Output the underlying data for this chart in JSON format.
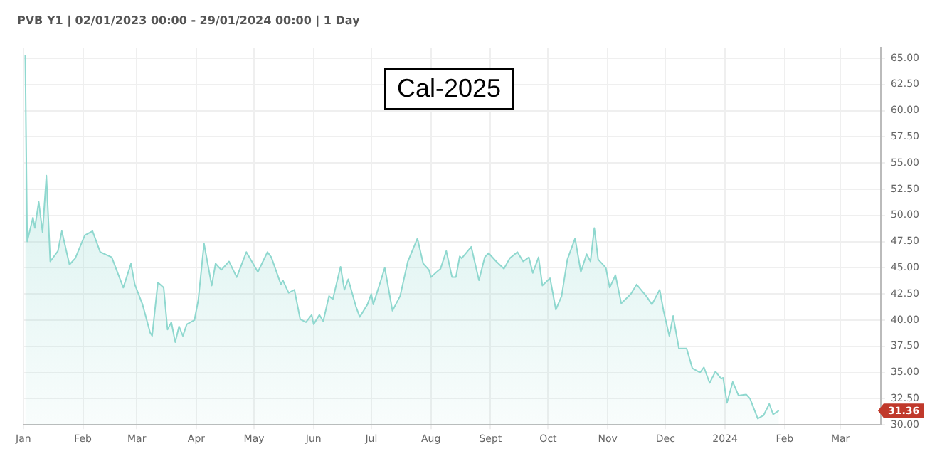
{
  "chart_data": {
    "type": "area",
    "title": "PVB Y1 | 02/01/2023 00:00 - 29/01/2024 00:00 | 1 Day",
    "x": [
      "2023-01-02",
      "2023-01-03",
      "2023-01-06",
      "2023-01-07",
      "2023-01-09",
      "2023-01-11",
      "2023-01-13",
      "2023-01-15",
      "2023-01-19",
      "2023-01-21",
      "2023-01-25",
      "2023-01-28",
      "2023-02-02",
      "2023-02-06",
      "2023-02-10",
      "2023-02-16",
      "2023-02-22",
      "2023-02-26",
      "2023-02-28",
      "2023-03-04",
      "2023-03-08",
      "2023-03-09",
      "2023-03-12",
      "2023-03-15",
      "2023-03-17",
      "2023-03-19",
      "2023-03-21",
      "2023-03-23",
      "2023-03-25",
      "2023-03-27",
      "2023-03-31",
      "2023-04-02",
      "2023-04-05",
      "2023-04-09",
      "2023-04-11",
      "2023-04-14",
      "2023-04-18",
      "2023-04-22",
      "2023-04-27",
      "2023-05-03",
      "2023-05-08",
      "2023-05-10",
      "2023-05-15",
      "2023-05-16",
      "2023-05-19",
      "2023-05-22",
      "2023-05-25",
      "2023-05-28",
      "2023-05-31",
      "2023-06-01",
      "2023-06-04",
      "2023-06-06",
      "2023-06-09",
      "2023-06-11",
      "2023-06-15",
      "2023-06-17",
      "2023-06-19",
      "2023-06-23",
      "2023-06-25",
      "2023-06-29",
      "2023-07-01",
      "2023-07-02",
      "2023-07-06",
      "2023-07-08",
      "2023-07-12",
      "2023-07-16",
      "2023-07-20",
      "2023-07-25",
      "2023-07-28",
      "2023-07-31",
      "2023-08-01",
      "2023-08-04",
      "2023-08-06",
      "2023-08-09",
      "2023-08-12",
      "2023-08-14",
      "2023-08-16",
      "2023-08-17",
      "2023-08-22",
      "2023-08-26",
      "2023-08-29",
      "2023-08-31",
      "2023-09-04",
      "2023-09-08",
      "2023-09-11",
      "2023-09-15",
      "2023-09-18",
      "2023-09-21",
      "2023-09-23",
      "2023-09-26",
      "2023-09-28",
      "2023-10-02",
      "2023-10-05",
      "2023-10-08",
      "2023-10-11",
      "2023-10-15",
      "2023-10-18",
      "2023-10-21",
      "2023-10-23",
      "2023-10-25",
      "2023-10-27",
      "2023-10-31",
      "2023-11-02",
      "2023-11-05",
      "2023-11-08",
      "2023-11-13",
      "2023-11-16",
      "2023-11-21",
      "2023-11-24",
      "2023-11-28",
      "2023-11-30",
      "2023-12-03",
      "2023-12-05",
      "2023-12-08",
      "2023-12-12",
      "2023-12-15",
      "2023-12-19",
      "2023-12-21",
      "2023-12-24",
      "2023-12-27",
      "2023-12-30",
      "2023-12-31",
      "2024-01-02",
      "2024-01-05",
      "2024-01-08",
      "2024-01-12",
      "2024-01-14",
      "2024-01-18",
      "2024-01-21",
      "2024-01-24",
      "2024-01-26",
      "2024-01-29"
    ],
    "series": [
      {
        "color": "#8fd8cf",
        "values": [
          65.3,
          47.5,
          49.8,
          48.8,
          51.3,
          48.4,
          53.8,
          45.6,
          46.6,
          48.5,
          45.3,
          45.9,
          48.1,
          48.5,
          46.5,
          46,
          43.1,
          45.4,
          43.4,
          41.5,
          38.8,
          38.5,
          43.6,
          43.1,
          39.1,
          39.8,
          37.9,
          39.4,
          38.5,
          39.6,
          40,
          41.9,
          47.3,
          43.3,
          45.4,
          44.8,
          45.6,
          44.1,
          46.5,
          44.6,
          46.5,
          46,
          43.4,
          43.8,
          42.6,
          42.9,
          40.1,
          39.8,
          40.5,
          39.6,
          40.5,
          39.9,
          42.3,
          42,
          45.1,
          42.9,
          43.9,
          41.3,
          40.3,
          41.5,
          42.5,
          41.5,
          43.8,
          45,
          40.9,
          42.3,
          45.6,
          47.8,
          45.4,
          44.8,
          44.1,
          44.6,
          44.9,
          46.6,
          44.1,
          44.1,
          46.1,
          45.9,
          47,
          43.8,
          46,
          46.4,
          45.6,
          44.9,
          45.9,
          46.5,
          45.6,
          46,
          44.5,
          46,
          43.3,
          44,
          41,
          42.3,
          45.8,
          47.8,
          44.6,
          46.3,
          45.6,
          48.8,
          45.8,
          45,
          43.1,
          44.3,
          41.6,
          42.5,
          43.4,
          42.3,
          41.5,
          42.9,
          40.9,
          38.5,
          40.4,
          37.3,
          37.3,
          35.4,
          35,
          35.5,
          34,
          35.1,
          34.4,
          34.5,
          32.1,
          34.1,
          32.8,
          32.9,
          32.5,
          30.6,
          30.9,
          32,
          31,
          31.36
        ]
      }
    ],
    "xlim": [
      "2023-01-01",
      "2024-03-22"
    ],
    "xticks": [
      {
        "value": "2023-01-01",
        "label": "Jan"
      },
      {
        "value": "2023-02-01",
        "label": "Feb"
      },
      {
        "value": "2023-03-01",
        "label": "Mar"
      },
      {
        "value": "2023-04-01",
        "label": "Apr"
      },
      {
        "value": "2023-05-01",
        "label": "May"
      },
      {
        "value": "2023-06-01",
        "label": "Jun"
      },
      {
        "value": "2023-07-01",
        "label": "Jul"
      },
      {
        "value": "2023-08-01",
        "label": "Aug"
      },
      {
        "value": "2023-09-01",
        "label": "Sept"
      },
      {
        "value": "2023-10-01",
        "label": "Oct"
      },
      {
        "value": "2023-11-01",
        "label": "Nov"
      },
      {
        "value": "2023-12-01",
        "label": "Dec"
      },
      {
        "value": "2024-01-01",
        "label": "2024"
      },
      {
        "value": "2024-02-01",
        "label": "Feb"
      },
      {
        "value": "2024-03-01",
        "label": "Mar"
      }
    ],
    "ylim": [
      30,
      66
    ],
    "yticks": [
      {
        "value": 30,
        "label": "30.00"
      },
      {
        "value": 32.5,
        "label": "32.50"
      },
      {
        "value": 35,
        "label": "35.00"
      },
      {
        "value": 37.5,
        "label": "37.50"
      },
      {
        "value": 40,
        "label": "40.00"
      },
      {
        "value": 42.5,
        "label": "42.50"
      },
      {
        "value": 45,
        "label": "45.00"
      },
      {
        "value": 47.5,
        "label": "47.50"
      },
      {
        "value": 50,
        "label": "50.00"
      },
      {
        "value": 52.5,
        "label": "52.50"
      },
      {
        "value": 55,
        "label": "55.00"
      },
      {
        "value": 57.5,
        "label": "57.50"
      },
      {
        "value": 60,
        "label": "60.00"
      },
      {
        "value": 62.5,
        "label": "62.50"
      },
      {
        "value": 65,
        "label": "65.00"
      }
    ],
    "annotations": [
      "Cal-2025",
      "31.36"
    ],
    "grid": true,
    "legend": false,
    "marker": "none",
    "line_style": "solid"
  }
}
